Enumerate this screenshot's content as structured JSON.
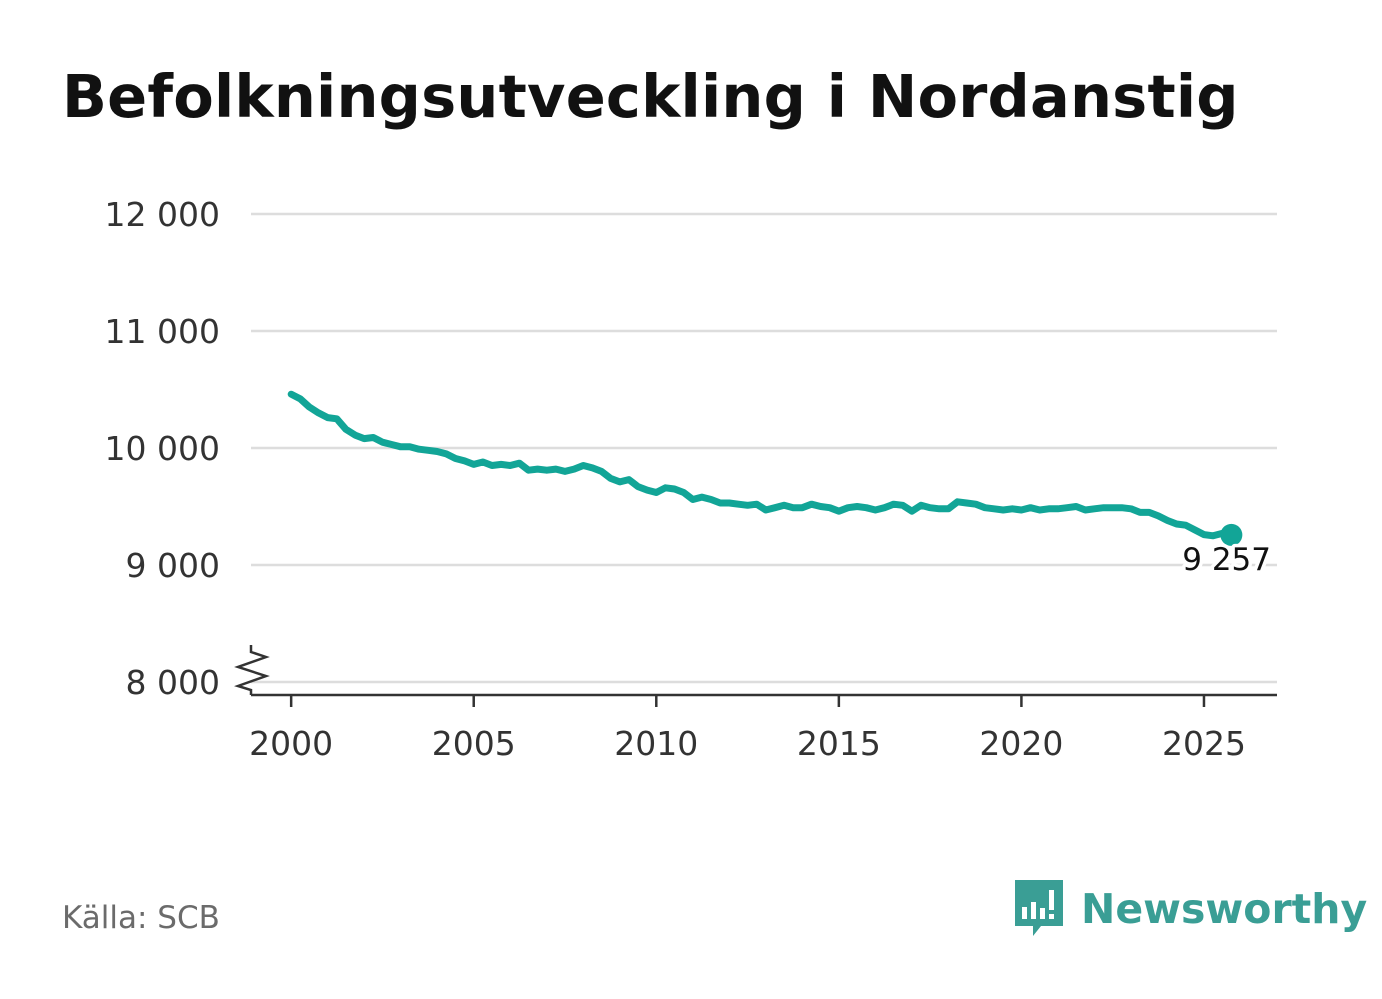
{
  "header": {
    "title": "Befolkningsutveckling i Nordanstig"
  },
  "footer": {
    "source": "Källa: SCB",
    "brand": "Newsworthy"
  },
  "colors": {
    "line": "#12a597",
    "brand": "#3a9e95",
    "grid": "#dddddd",
    "text": "#333333"
  },
  "chart_data": {
    "type": "line",
    "title": "Befolkningsutveckling i Nordanstig",
    "xlabel": "",
    "ylabel": "",
    "xlim": [
      1998.9,
      2027.0
    ],
    "ylim": [
      8000,
      12000
    ],
    "grid": true,
    "axis_break": true,
    "x_ticks": [
      2000,
      2005,
      2010,
      2015,
      2020,
      2025
    ],
    "x_tick_labels": [
      "2000",
      "2005",
      "2010",
      "2015",
      "2020",
      "2025"
    ],
    "y_ticks": [
      8000,
      9000,
      10000,
      11000,
      12000
    ],
    "y_tick_labels": [
      "8 000",
      "9 000",
      "10 000",
      "11 000",
      "12 000"
    ],
    "end_label": "9 257",
    "series": [
      {
        "name": "Befolkning",
        "x": [
          2000.0,
          2000.25,
          2000.5,
          2000.75,
          2001.0,
          2001.25,
          2001.5,
          2001.75,
          2002.0,
          2002.25,
          2002.5,
          2002.75,
          2003.0,
          2003.25,
          2003.5,
          2003.75,
          2004.0,
          2004.25,
          2004.5,
          2004.75,
          2005.0,
          2005.25,
          2005.5,
          2005.75,
          2006.0,
          2006.25,
          2006.5,
          2006.75,
          2007.0,
          2007.25,
          2007.5,
          2007.75,
          2008.0,
          2008.25,
          2008.5,
          2008.75,
          2009.0,
          2009.25,
          2009.5,
          2009.75,
          2010.0,
          2010.25,
          2010.5,
          2010.75,
          2011.0,
          2011.25,
          2011.5,
          2011.75,
          2012.0,
          2012.25,
          2012.5,
          2012.75,
          2013.0,
          2013.25,
          2013.5,
          2013.75,
          2014.0,
          2014.25,
          2014.5,
          2014.75,
          2015.0,
          2015.25,
          2015.5,
          2015.75,
          2016.0,
          2016.25,
          2016.5,
          2016.75,
          2017.0,
          2017.25,
          2017.5,
          2017.75,
          2018.0,
          2018.25,
          2018.5,
          2018.75,
          2019.0,
          2019.25,
          2019.5,
          2019.75,
          2020.0,
          2020.25,
          2020.5,
          2020.75,
          2021.0,
          2021.25,
          2021.5,
          2021.75,
          2022.0,
          2022.25,
          2022.5,
          2022.75,
          2023.0,
          2023.25,
          2023.5,
          2023.75,
          2024.0,
          2024.25,
          2024.5,
          2024.75,
          2025.0,
          2025.25,
          2025.5,
          2025.75
        ],
        "values": [
          10460,
          10420,
          10350,
          10300,
          10260,
          10250,
          10160,
          10110,
          10080,
          10090,
          10050,
          10030,
          10010,
          10010,
          9990,
          9980,
          9970,
          9950,
          9910,
          9890,
          9860,
          9880,
          9850,
          9860,
          9850,
          9870,
          9810,
          9820,
          9810,
          9820,
          9800,
          9820,
          9850,
          9830,
          9800,
          9740,
          9710,
          9730,
          9670,
          9640,
          9620,
          9660,
          9650,
          9620,
          9560,
          9580,
          9560,
          9530,
          9530,
          9520,
          9510,
          9520,
          9470,
          9490,
          9510,
          9490,
          9490,
          9520,
          9500,
          9490,
          9460,
          9490,
          9500,
          9490,
          9470,
          9490,
          9520,
          9510,
          9460,
          9510,
          9490,
          9480,
          9480,
          9540,
          9530,
          9520,
          9490,
          9480,
          9470,
          9480,
          9470,
          9490,
          9470,
          9480,
          9480,
          9490,
          9500,
          9470,
          9480,
          9490,
          9490,
          9490,
          9480,
          9450,
          9450,
          9420,
          9380,
          9350,
          9340,
          9300,
          9260,
          9250,
          9270,
          9257
        ]
      }
    ]
  }
}
